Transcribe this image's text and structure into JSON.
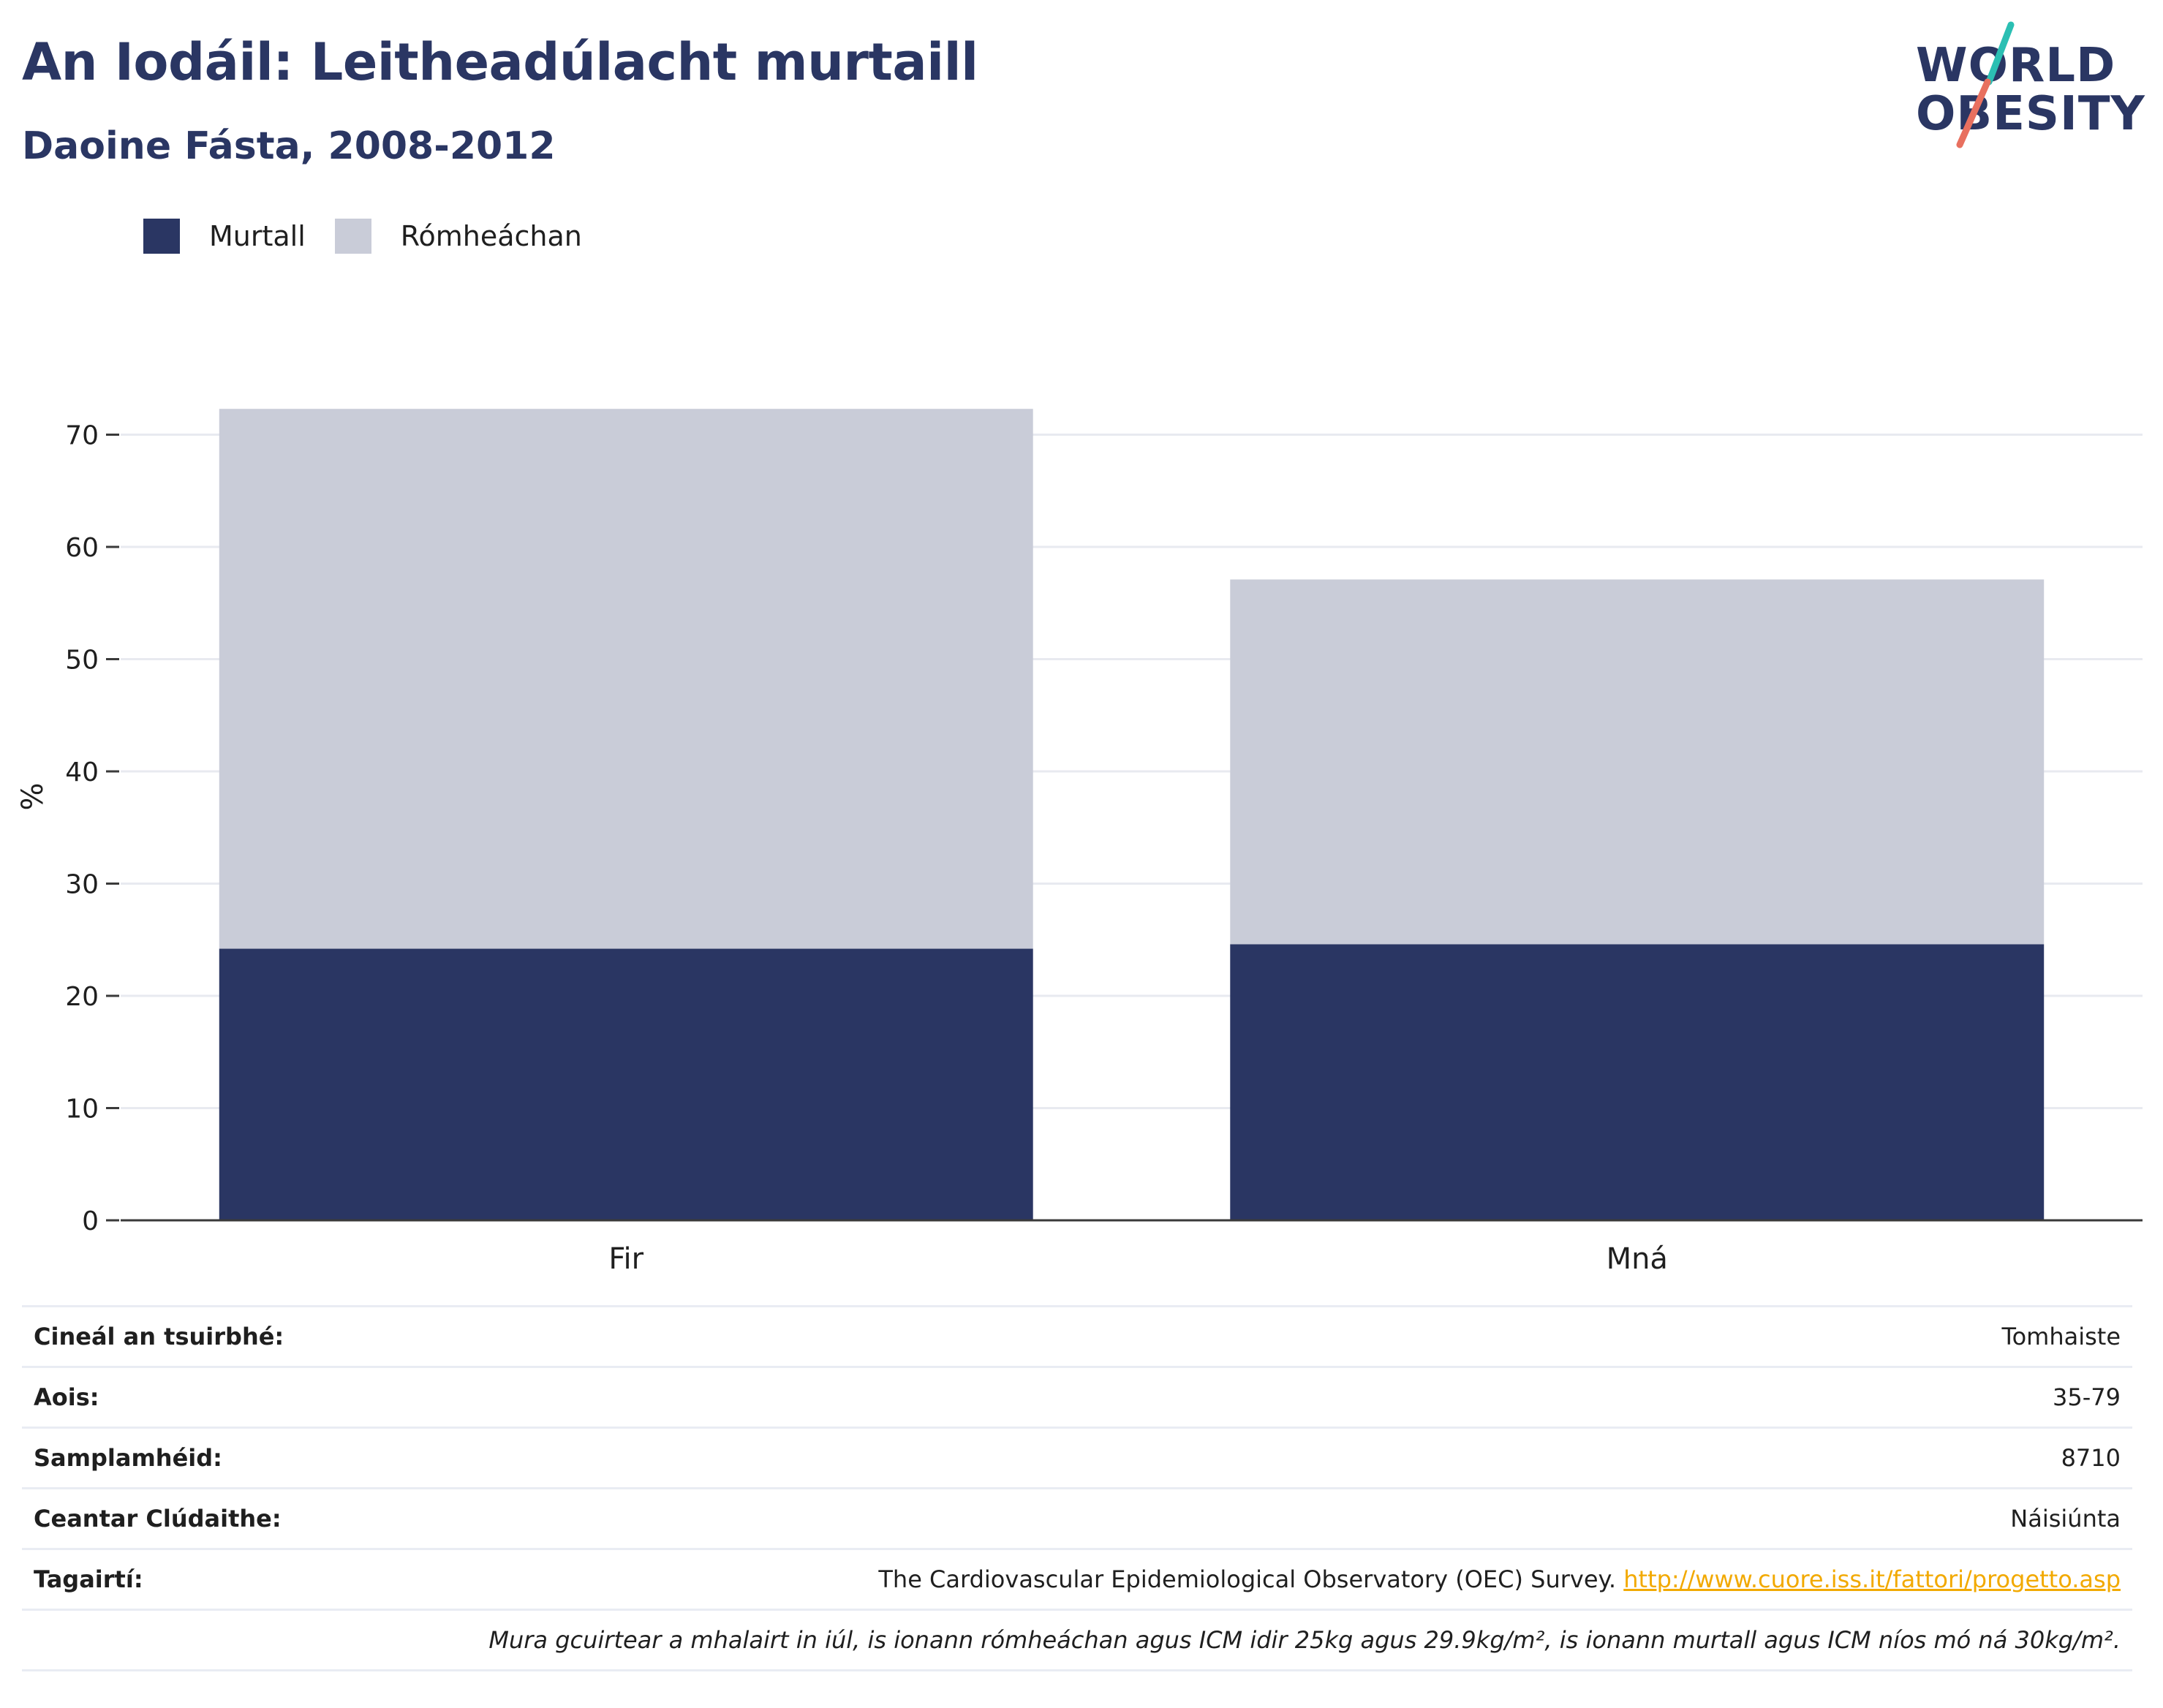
{
  "header": {
    "title": "An Iodáil: Leitheadúlacht murtaill",
    "subtitle": "Daoine Fásta, 2008-2012"
  },
  "logo": {
    "line1": "WORLD",
    "line2": "OBESITY",
    "accent_teal": "#2bbfb3",
    "accent_coral": "#e8705f"
  },
  "legend": [
    {
      "label": "Murtall",
      "color": "#2a3663"
    },
    {
      "label": "Rómheáchan",
      "color": "#c9ccd8"
    }
  ],
  "chart_data": {
    "type": "bar",
    "stacked": true,
    "categories": [
      "Fir",
      "Mná"
    ],
    "series": [
      {
        "name": "Murtall",
        "color": "#2a3663",
        "values": [
          24.2,
          24.6
        ]
      },
      {
        "name": "Rómheáchan",
        "color": "#c9ccd8",
        "values": [
          48.1,
          32.5
        ]
      }
    ],
    "ylabel": "%",
    "xlabel": "",
    "ylim": [
      0,
      75
    ],
    "yticks": [
      0,
      10,
      20,
      30,
      40,
      50,
      60,
      70
    ],
    "grid": true
  },
  "info": [
    {
      "label": "Cineál an tsuirbhé:",
      "value": "Tomhaiste"
    },
    {
      "label": "Aois:",
      "value": "35-79"
    },
    {
      "label": "Samplamhéid:",
      "value": "8710"
    },
    {
      "label": "Ceantar Clúdaithe:",
      "value": "Náisiúnta"
    },
    {
      "label": "Tagairtí:",
      "value": "The Cardiovascular Epidemiological Observatory (OEC) Survey.",
      "link": "http://www.cuore.iss.it/fattori/progetto.asp"
    }
  ],
  "note": "Mura gcuirtear a mhalairt in iúl, is ionann rómheáchan agus ICM idir 25kg agus 29.9kg/m², is ionann murtall agus ICM níos mó ná 30kg/m²."
}
